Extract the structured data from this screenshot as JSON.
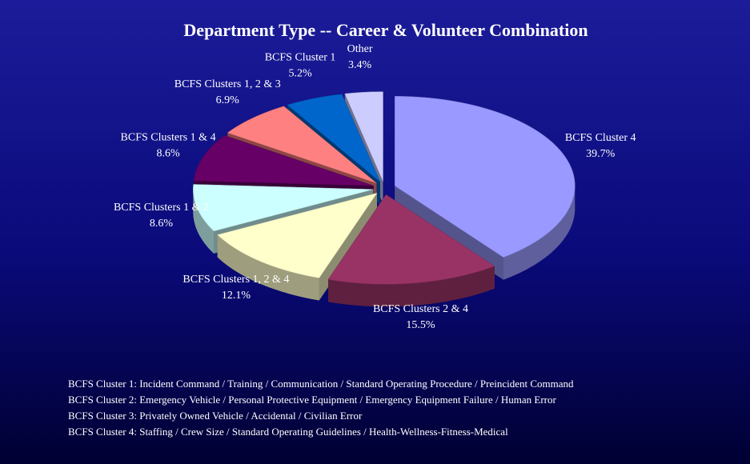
{
  "chart_data": {
    "type": "pie",
    "title": "Department Type -- Career & Volunteer Combination",
    "categories": [
      "BCFS Cluster 4",
      "BCFS Clusters 2 & 4",
      "BCFS Clusters 1, 2 & 4",
      "BCFS Clusters 1 & 2",
      "BCFS Clusters 1 & 4",
      "BCFS Clusters 1, 2 & 3",
      "BCFS Cluster 1",
      "Other"
    ],
    "values": [
      39.7,
      15.5,
      12.1,
      8.6,
      8.6,
      6.9,
      5.2,
      3.4
    ],
    "value_labels": [
      "39.7%",
      "15.5%",
      "12.1%",
      "8.6%",
      "8.6%",
      "6.9%",
      "5.2%",
      "3.4%"
    ],
    "colors": [
      "#9999ff",
      "#993366",
      "#ffffcc",
      "#ccffff",
      "#660066",
      "#ff8080",
      "#0066cc",
      "#ccccff"
    ],
    "notes": [
      "BCFS Cluster 1:  Incident Command / Training / Communication / Standard Operating Procedure / Preincident Command",
      "BCFS Cluster 2:  Emergency Vehicle / Personal Protective Equipment / Emergency Equipment Failure / Human Error",
      "BCFS Cluster 3:  Privately Owned Vehicle / Accidental / Civilian Error",
      "BCFS Cluster 4:  Staffing / Crew Size / Standard Operating Guidelines / Health-Wellness-Fitness-Medical"
    ]
  }
}
